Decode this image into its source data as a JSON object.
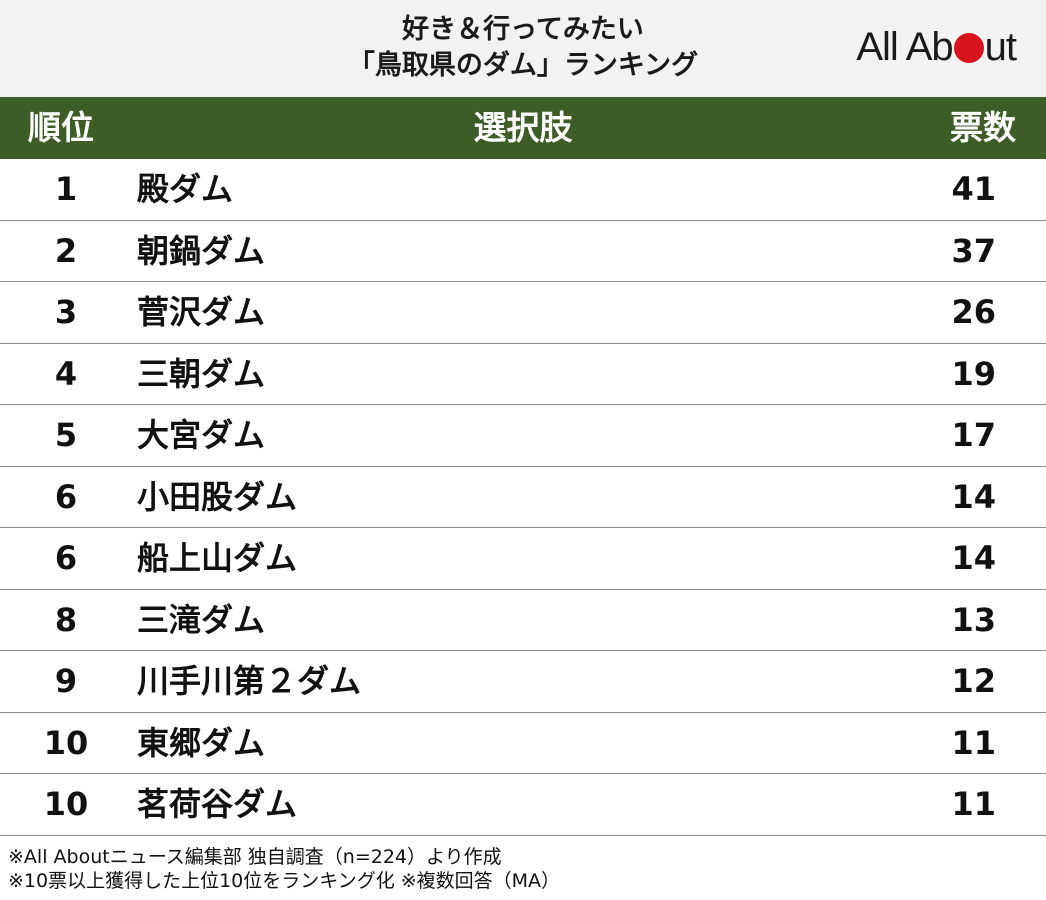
{
  "title": {
    "line1": "好き＆行ってみたい",
    "line2": "「鳥取県のダム」ランキング"
  },
  "logo": {
    "text_before": "All Ab",
    "text_after": "ut",
    "dot_color": "#d7141e"
  },
  "header": {
    "rank": "順位",
    "choice": "選択肢",
    "votes": "票数",
    "bg_color": "#3e5c25"
  },
  "rows": [
    {
      "rank": "1",
      "name": "殿ダム",
      "votes": "41"
    },
    {
      "rank": "2",
      "name": "朝鍋ダム",
      "votes": "37"
    },
    {
      "rank": "3",
      "name": "菅沢ダム",
      "votes": "26"
    },
    {
      "rank": "4",
      "name": "三朝ダム",
      "votes": "19"
    },
    {
      "rank": "5",
      "name": "大宮ダム",
      "votes": "17"
    },
    {
      "rank": "6",
      "name": "小田股ダム",
      "votes": "14"
    },
    {
      "rank": "6",
      "name": "船上山ダム",
      "votes": "14"
    },
    {
      "rank": "8",
      "name": "三滝ダム",
      "votes": "13"
    },
    {
      "rank": "9",
      "name": "川手川第２ダム",
      "votes": "12"
    },
    {
      "rank": "10",
      "name": "東郷ダム",
      "votes": "11"
    },
    {
      "rank": "10",
      "name": "茗荷谷ダム",
      "votes": "11"
    }
  ],
  "footnotes": {
    "line1": "※All Aboutニュース編集部 独自調査（n=224）より作成",
    "line2": "※10票以上獲得した上位10位をランキング化 ※複数回答（MA）"
  }
}
